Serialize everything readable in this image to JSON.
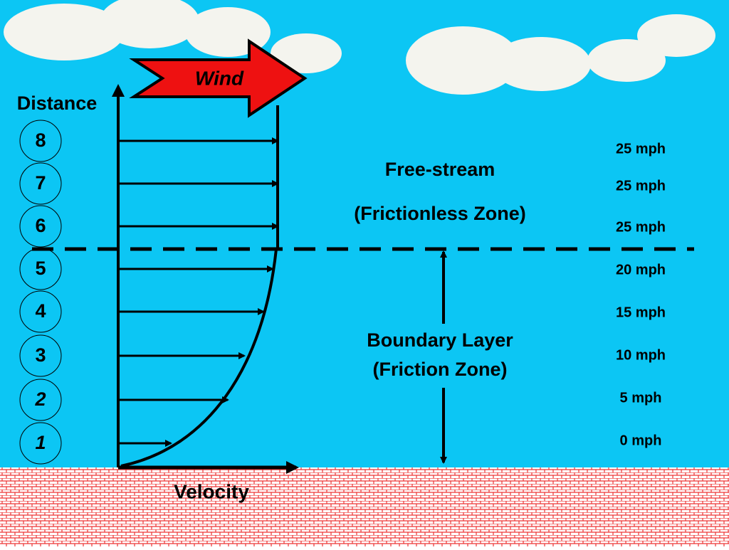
{
  "title_arrow": "Wind",
  "y_axis_label": "Distance",
  "x_axis_label": "Velocity",
  "zones": {
    "upper": {
      "line1": "Free-stream",
      "line2": "(Frictionless Zone)"
    },
    "lower": {
      "line1": "Boundary Layer",
      "line2": "(Friction Zone)"
    }
  },
  "levels": [
    {
      "label": "8",
      "speed": "25 mph"
    },
    {
      "label": "7",
      "speed": "25 mph"
    },
    {
      "label": "6",
      "speed": "25 mph"
    },
    {
      "label": "5",
      "speed": "20 mph"
    },
    {
      "label": "4",
      "speed": "15 mph"
    },
    {
      "label": "3",
      "speed": "10 mph"
    },
    {
      "label": "2",
      "speed": "5 mph"
    },
    {
      "label": "1",
      "speed": "0 mph"
    }
  ]
}
